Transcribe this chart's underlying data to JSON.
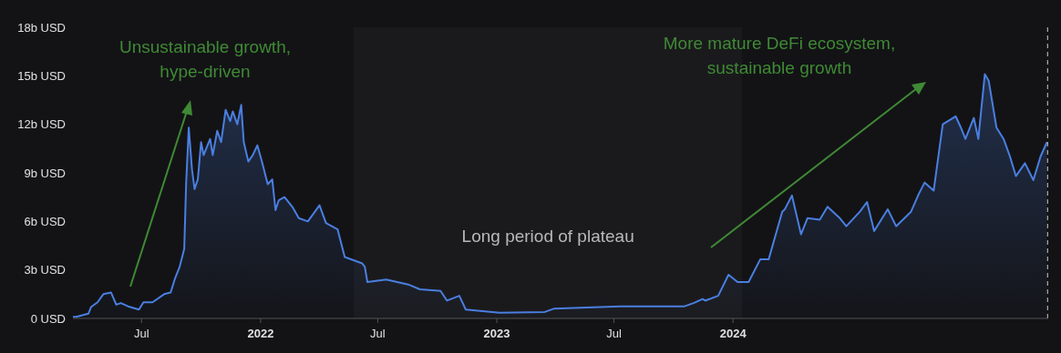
{
  "chart_data": {
    "type": "area",
    "x": [
      "2021-03-17",
      "2021-03-22",
      "2021-04-10",
      "2021-04-14",
      "2021-04-24",
      "2021-05-03",
      "2021-05-15",
      "2021-05-23",
      "2021-05-30",
      "2021-06-10",
      "2021-06-27",
      "2021-07-04",
      "2021-07-18",
      "2021-08-05",
      "2021-08-15",
      "2021-08-22",
      "2021-08-29",
      "2021-09-05",
      "2021-09-08",
      "2021-09-12",
      "2021-09-17",
      "2021-09-21",
      "2021-09-26",
      "2021-10-01",
      "2021-10-05",
      "2021-10-15",
      "2021-10-19",
      "2021-10-26",
      "2021-11-01",
      "2021-11-08",
      "2021-11-15",
      "2021-11-19",
      "2021-11-26",
      "2021-12-02",
      "2021-12-06",
      "2021-12-13",
      "2021-12-20",
      "2021-12-27",
      "2022-01-03",
      "2022-01-12",
      "2022-01-19",
      "2022-01-24",
      "2022-01-29",
      "2022-02-07",
      "2022-02-19",
      "2022-03-01",
      "2022-03-15",
      "2022-04-02",
      "2022-04-12",
      "2022-04-30",
      "2022-05-11",
      "2022-06-07",
      "2022-06-11",
      "2022-06-15",
      "2022-07-14",
      "2022-08-17",
      "2022-09-04",
      "2022-10-06",
      "2022-10-16",
      "2022-11-04",
      "2022-11-14",
      "2023-01-05",
      "2023-03-16",
      "2023-03-30",
      "2023-07-11",
      "2023-10-18",
      "2023-11-01",
      "2023-11-15",
      "2023-11-19",
      "2023-12-09",
      "2023-12-25",
      "2024-01-08",
      "2024-01-25",
      "2024-02-12",
      "2024-02-25",
      "2024-03-17",
      "2024-03-21",
      "2024-04-01",
      "2024-04-15",
      "2024-04-25",
      "2024-05-14",
      "2024-05-26",
      "2024-06-14",
      "2024-06-24",
      "2024-07-15",
      "2024-07-26",
      "2024-08-06",
      "2024-08-27",
      "2024-09-09",
      "2024-10-02",
      "2024-10-14",
      "2024-10-23",
      "2024-11-06",
      "2024-11-20",
      "2024-12-10",
      "2024-12-18",
      "2024-12-25",
      "2025-01-07",
      "2025-01-14",
      "2025-01-24",
      "2025-01-30",
      "2025-02-11",
      "2025-02-22",
      "2025-03-04",
      "2025-03-13",
      "2025-03-27",
      "2025-04-09",
      "2025-04-20",
      "2025-04-30"
    ],
    "series": [
      {
        "color": "#4a7fe0",
        "values": [
          0.1,
          0.1,
          0.3,
          0.7,
          1.0,
          1.5,
          1.6,
          0.85,
          0.95,
          0.75,
          0.55,
          1.0,
          1.0,
          1.5,
          1.6,
          2.5,
          3.2,
          4.3,
          8.4,
          11.8,
          9.2,
          8.0,
          8.6,
          10.9,
          10.1,
          11.1,
          10.1,
          11.6,
          10.9,
          12.9,
          12.2,
          12.8,
          12.0,
          13.2,
          10.9,
          9.7,
          10.1,
          10.7,
          9.7,
          8.3,
          8.6,
          6.7,
          7.3,
          7.5,
          6.9,
          6.2,
          6.0,
          7.0,
          5.9,
          5.5,
          3.8,
          3.4,
          3.2,
          2.25,
          2.4,
          2.1,
          1.8,
          1.7,
          1.1,
          1.4,
          0.55,
          0.35,
          0.4,
          0.6,
          0.75,
          0.75,
          0.95,
          1.2,
          1.1,
          1.4,
          2.7,
          2.25,
          2.25,
          3.65,
          3.65,
          6.6,
          6.75,
          7.6,
          5.2,
          6.2,
          6.1,
          6.9,
          6.2,
          5.7,
          6.6,
          7.2,
          5.4,
          6.75,
          5.7,
          6.6,
          7.7,
          8.4,
          7.9,
          12.0,
          12.5,
          11.8,
          11.1,
          12.4,
          11.1,
          15.1,
          14.7,
          11.8,
          11.1,
          10.0,
          8.8,
          9.6,
          8.55,
          10.0,
          10.9
        ]
      }
    ],
    "xlim": [
      "2021-03-17",
      "2025-05-02"
    ],
    "xticks": [
      {
        "value": "2021-07-01",
        "label": "Jul"
      },
      {
        "value": "2022-01-01",
        "label": "2022"
      },
      {
        "value": "2022-07-01",
        "label": "Jul"
      },
      {
        "value": "2023-01-01",
        "label": "2023"
      },
      {
        "value": "2023-07-01",
        "label": "Jul"
      },
      {
        "value": "2024-01-01",
        "label": "2024"
      }
    ],
    "ylim": [
      0,
      18
    ],
    "yticks": [
      {
        "value": 0,
        "label": "0 USD"
      },
      {
        "value": 3,
        "label": "3b USD"
      },
      {
        "value": 6,
        "label": "6b USD"
      },
      {
        "value": 9,
        "label": "9b USD"
      },
      {
        "value": 12,
        "label": "12b USD"
      },
      {
        "value": 15,
        "label": "15b USD"
      },
      {
        "value": 18,
        "label": "18b USD"
      }
    ],
    "grid": false,
    "legend": false,
    "bands": [
      {
        "axis": "x",
        "from": "2022-05-25",
        "to": "2024-01-15",
        "label": "Long period of plateau",
        "color": "#a0a0a0"
      }
    ],
    "ref_lines": [
      {
        "axis": "x",
        "value": "2025-05-01",
        "color": "#cccccc",
        "line_style": "dashed"
      }
    ],
    "annotations": [
      "Unsustainable growth,\nhype-driven",
      "More mature DeFi ecosystem,\nsustainable growth"
    ]
  }
}
